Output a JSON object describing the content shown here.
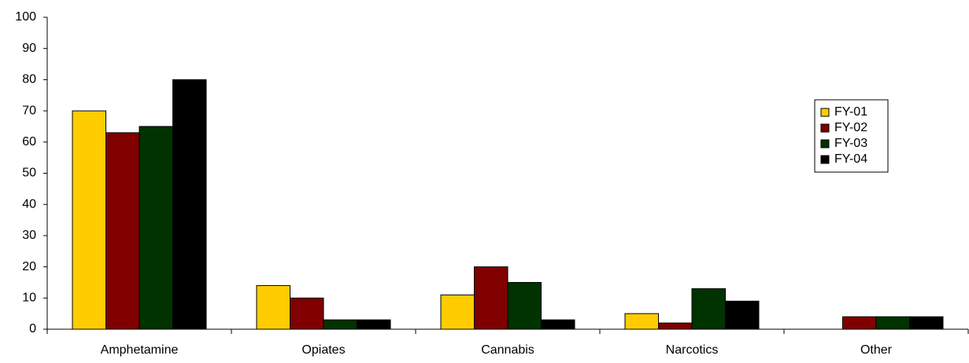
{
  "chart_data": {
    "type": "bar",
    "categories": [
      "Amphetamine",
      "Opiates",
      "Cannabis",
      "Narcotics",
      "Other"
    ],
    "series": [
      {
        "name": "FY-01",
        "color": "#ffcc00",
        "values": [
          70,
          14,
          11,
          5,
          0
        ]
      },
      {
        "name": "FY-02",
        "color": "#800000",
        "values": [
          63,
          10,
          20,
          2,
          4
        ]
      },
      {
        "name": "FY-03",
        "color": "#003300",
        "values": [
          65,
          3,
          15,
          13,
          4
        ]
      },
      {
        "name": "FY-04",
        "color": "#000000",
        "values": [
          80,
          3,
          3,
          9,
          4
        ]
      }
    ],
    "ylim": [
      0,
      100
    ],
    "yticks": [
      0,
      10,
      20,
      30,
      40,
      50,
      60,
      70,
      80,
      90,
      100
    ],
    "grid": false,
    "legend": "right"
  }
}
